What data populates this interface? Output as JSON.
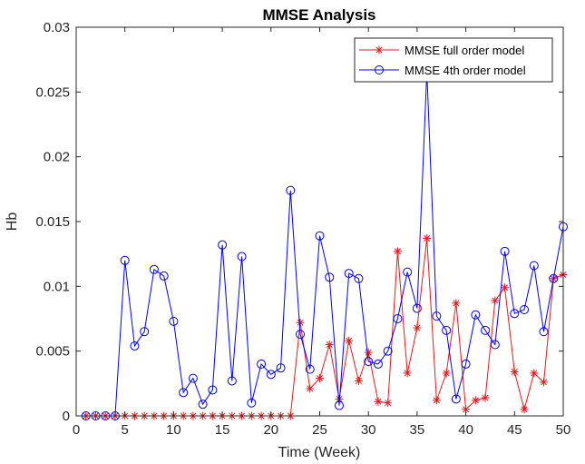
{
  "chart_data": {
    "type": "line",
    "title": "MMSE Analysis",
    "xlabel": "Time (Week)",
    "ylabel": "Hb",
    "xlim": [
      0,
      50
    ],
    "ylim": [
      0,
      0.03
    ],
    "xticks": [
      0,
      5,
      10,
      15,
      20,
      25,
      30,
      35,
      40,
      45,
      50
    ],
    "yticks": [
      0,
      0.005,
      0.01,
      0.015,
      0.02,
      0.025,
      0.03
    ],
    "xtick_labels": [
      "0",
      "5",
      "10",
      "15",
      "20",
      "25",
      "30",
      "35",
      "40",
      "45",
      "50"
    ],
    "ytick_labels": [
      "0",
      "0.005",
      "0.01",
      "0.015",
      "0.02",
      "0.025",
      "0.03"
    ],
    "grid": false,
    "legend_position": "top-right",
    "x": [
      1,
      2,
      3,
      4,
      5,
      6,
      7,
      8,
      9,
      10,
      11,
      12,
      13,
      14,
      15,
      16,
      17,
      18,
      19,
      20,
      21,
      22,
      23,
      24,
      25,
      26,
      27,
      28,
      29,
      30,
      31,
      32,
      33,
      34,
      35,
      36,
      37,
      38,
      39,
      40,
      41,
      42,
      43,
      44,
      45,
      46,
      47,
      48,
      49,
      50
    ],
    "series": [
      {
        "name": "MMSE full order model",
        "color": "#e41a1c",
        "marker": "asterisk",
        "values": [
          0,
          0,
          0,
          0,
          0,
          0,
          0,
          0,
          0,
          0,
          0,
          0,
          0,
          0,
          0,
          0,
          0,
          0,
          0,
          0,
          0,
          0,
          0.0072,
          0.0021,
          0.0029,
          0.0055,
          0.0013,
          0.0058,
          0.0027,
          0.0049,
          0.0011,
          0.001,
          0.0127,
          0.0033,
          0.0068,
          0.0137,
          0.0012,
          0.0033,
          0.0087,
          0.0005,
          0.0012,
          0.0014,
          0.0089,
          0.0099,
          0.0034,
          0.0005,
          0.0033,
          0.0026,
          0.0106,
          0.0109
        ]
      },
      {
        "name": "MMSE 4th order model",
        "color": "#0000ff",
        "marker": "circle",
        "values": [
          0,
          0,
          0,
          0,
          0.012,
          0.0054,
          0.0065,
          0.0113,
          0.0108,
          0.0073,
          0.0018,
          0.0029,
          0.0009,
          0.002,
          0.0132,
          0.0027,
          0.0123,
          0.001,
          0.004,
          0.0032,
          0.0037,
          0.0174,
          0.0063,
          0.0036,
          0.0139,
          0.0107,
          0.0008,
          0.011,
          0.0106,
          0.0042,
          0.004,
          0.005,
          0.0075,
          0.0111,
          0.0083,
          0.0266,
          0.0077,
          0.0066,
          0.0013,
          0.004,
          0.0078,
          0.0066,
          0.0055,
          0.0127,
          0.0079,
          0.0082,
          0.0116,
          0.0065,
          0.0106,
          0.0146
        ]
      }
    ]
  }
}
